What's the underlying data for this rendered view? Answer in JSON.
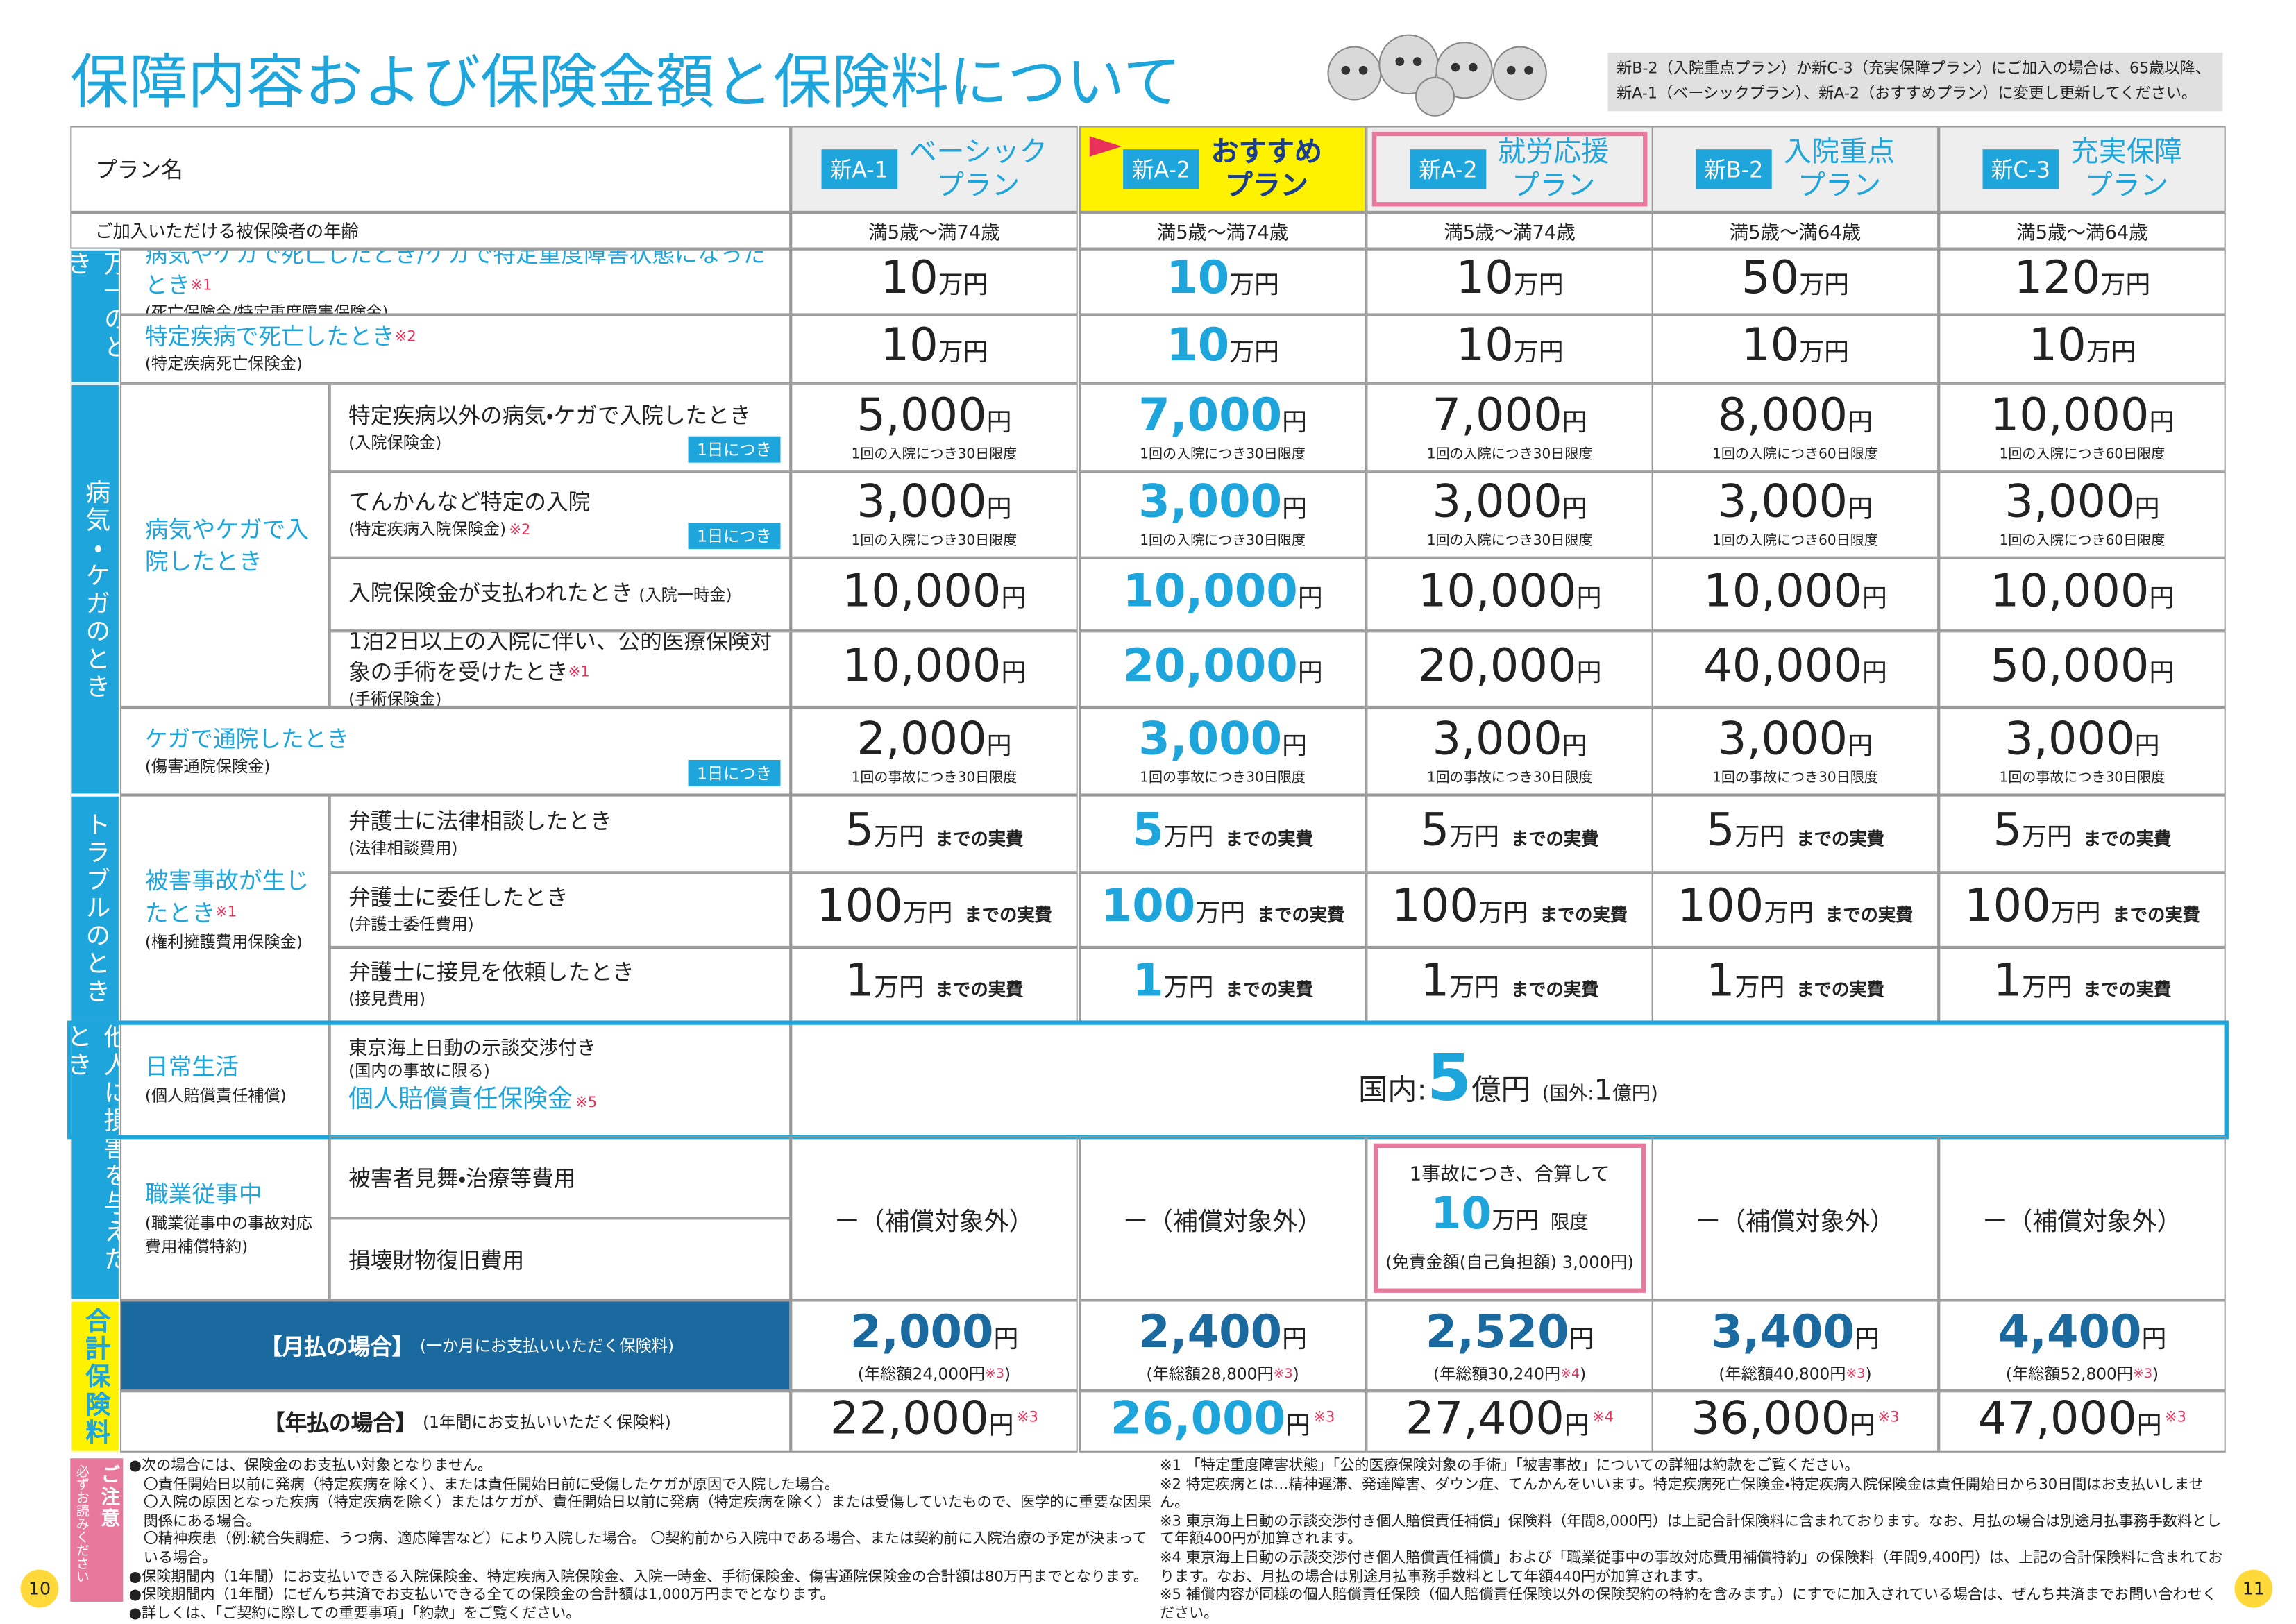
{
  "header": {
    "title": "保障内容および保険金額と保険料について",
    "note": "新B-2（入院重点プラン）か新C-3（充実保障プラン）にご加入の場合は、65歳以降、新A-1（ベーシックプラン）、新A-2（おすすめプラン）に変更し更新してください。"
  },
  "table": {
    "plan_label": "プラン名",
    "age_label": "ご加入いただける被保険者の年齢",
    "plans": [
      {
        "code": "新A-1",
        "name": [
          "ベーシック",
          "プラン"
        ],
        "age": "満5歳～満74歳"
      },
      {
        "code": "新A-2",
        "name": [
          "おすすめ",
          "プラン"
        ],
        "age": "満5歳～満74歳"
      },
      {
        "code": "新A-2",
        "name": [
          "就労応援",
          "プラン"
        ],
        "age": "満5歳～満74歳"
      },
      {
        "code": "新B-2",
        "name": [
          "入院重点",
          "プラン"
        ],
        "age": "満5歳～満64歳"
      },
      {
        "code": "新C-3",
        "name": [
          "充実保障",
          "プラン"
        ],
        "age": "満5歳～満64歳"
      }
    ],
    "sections": [
      {
        "label": "万一のとき"
      },
      {
        "label": "病気・ケガのとき"
      },
      {
        "label": "トラブルのとき"
      },
      {
        "label": "他人に損害を与えたとき"
      },
      {
        "label": "合計保険料"
      }
    ],
    "groups": [
      {
        "label": "病気やケガで入院したとき"
      },
      {
        "label": "被害事故が生じたとき",
        "mark": "※1",
        "sub": "(権利擁護費用保険金)"
      },
      {
        "label": "日常生活",
        "sub": "(個人賠償責任補償)"
      },
      {
        "label": "職業従事中",
        "sub": "(職業従事中の事故対応費用補償特約)"
      }
    ],
    "rows": [
      {
        "label": "病気やケガで死亡したとき/ケガで特定重度障害状態になったとき",
        "mark": "※1",
        "sub": "(死亡保険金/特定重度障害保険金)",
        "unit": "万円",
        "amounts": [
          "10",
          "10",
          "10",
          "50",
          "120"
        ]
      },
      {
        "label": "特定疾病で死亡したとき",
        "sub": "(特定疾病死亡保険金)",
        "mark": "※2",
        "unit": "万円",
        "amounts": [
          "10",
          "10",
          "10",
          "10",
          "10"
        ]
      },
      {
        "label": "特定疾病以外の病気・ケガで入院したとき",
        "sub": "(入院保険金)",
        "badge": "1日につき",
        "unit": "円",
        "amounts": [
          "5,000",
          "7,000",
          "7,000",
          "8,000",
          "10,000"
        ],
        "limits": [
          "1回の入院につき30日限度",
          "1回の入院につき30日限度",
          "1回の入院につき30日限度",
          "1回の入院につき60日限度",
          "1回の入院につき60日限度"
        ]
      },
      {
        "label": "てんかんなど特定の入院",
        "sub": "(特定疾病入院保険金)",
        "mark": "※2",
        "badge": "1日につき",
        "unit": "円",
        "amounts": [
          "3,000",
          "3,000",
          "3,000",
          "3,000",
          "3,000"
        ],
        "limits": [
          "1回の入院につき30日限度",
          "1回の入院につき30日限度",
          "1回の入院につき30日限度",
          "1回の入院につき60日限度",
          "1回の入院につき60日限度"
        ]
      },
      {
        "label": "入院保険金が支払われたとき",
        "sub": "(入院一時金)",
        "unit": "円",
        "amounts": [
          "10,000",
          "10,000",
          "10,000",
          "10,000",
          "10,000"
        ]
      },
      {
        "label": "1泊2日以上の入院に伴い、公的医療保険対象の手術を受けたとき",
        "mark": "※1",
        "sub": "(手術保険金)",
        "unit": "円",
        "amounts": [
          "10,000",
          "20,000",
          "20,000",
          "40,000",
          "50,000"
        ]
      },
      {
        "label": "ケガで通院したとき",
        "sub": "(傷害通院保険金)",
        "badge": "1日につき",
        "unit": "円",
        "amounts": [
          "2,000",
          "3,000",
          "3,000",
          "3,000",
          "3,000"
        ],
        "limits": [
          "1回の事故につき30日限度",
          "1回の事故につき30日限度",
          "1回の事故につき30日限度",
          "1回の事故につき30日限度",
          "1回の事故につき30日限度"
        ]
      },
      {
        "label": "弁護士に法律相談したとき",
        "sub": "(法律相談費用)",
        "unit": "万円",
        "suffix": "までの実費",
        "amounts": [
          "5",
          "5",
          "5",
          "5",
          "5"
        ]
      },
      {
        "label": "弁護士に委任したとき",
        "sub": "(弁護士委任費用)",
        "unit": "万円",
        "suffix": "までの実費",
        "amounts": [
          "100",
          "100",
          "100",
          "100",
          "100"
        ]
      },
      {
        "label": "弁護士に接見を依頼したとき",
        "sub": "(接見費用)",
        "unit": "万円",
        "suffix": "までの実費",
        "amounts": [
          "1",
          "1",
          "1",
          "1",
          "1"
        ]
      }
    ],
    "liability": {
      "title_pre": "東京海上日動の示談交渉付き",
      "title_note": "(国内の事故に限る)",
      "title": "個人賠償責任保険金",
      "mark": "※5",
      "domestic_label": "国内:",
      "domestic_amount": "5",
      "unit": "億円",
      "overseas_label": "(国外:",
      "overseas_amount": "1",
      "overseas_unit": "億円)"
    },
    "work": {
      "items": [
        "被害者見舞・治療等費用",
        "損壊財物復旧費用"
      ],
      "not_covered": "ー（補償対象外）",
      "special": {
        "line1": "1事故につき、合算して",
        "amount": "10",
        "unit": "万円",
        "limit": "限度",
        "note": "(免責金額(自己負担額) 3,000円)"
      }
    },
    "premiums": [
      {
        "label": "【月払の場合】",
        "sub": "(一か月にお支払いいただく保険料)",
        "unit": "円",
        "amounts": [
          "2,000",
          "2,400",
          "2,520",
          "3,400",
          "4,400"
        ],
        "annual": [
          "(年総額24,000円",
          "(年総額28,800円",
          "(年総額30,240円",
          "(年総額40,800円",
          "(年総額52,800円"
        ],
        "marks": [
          "※3",
          "※3",
          "※4",
          "※3",
          "※3"
        ],
        "close": ")"
      },
      {
        "label": "【年払の場合】",
        "sub": "(1年間にお支払いいただく保険料)",
        "unit": "円",
        "amounts": [
          "22,000",
          "26,000",
          "27,400",
          "36,000",
          "47,000"
        ],
        "marks": [
          "※3",
          "※3",
          "※4",
          "※3",
          "※3"
        ]
      }
    ]
  },
  "notes": {
    "caution_label": "必ずお読みください",
    "caution_title": "ご注意",
    "left": [
      "●次の場合には、保険金のお支払い対象となりません。",
      "〇責任開始日以前に発病（特定疾病を除く）、または責任開始日前に受傷したケガが原因で入院した場合。",
      "〇入院の原因となった疾病（特定疾病を除く）またはケガが、責任開始日以前に発病（特定疾病を除く）または受傷していたもので、医学的に重要な因果関係にある場合。",
      "〇精神疾患（例:統合失調症、うつ病、適応障害など）により入院した場合。 〇契約前から入院中である場合、または契約前に入院治療の予定が決まっている場合。",
      "●保険期間内（1年間）にお支払いできる入院保険金、特定疾病入院保険金、入院一時金、手術保険金、傷害通院保険金の合計額は80万円までとなります。",
      "●保険期間内（1年間）にぜんち共済でお支払いできる全ての保険金の合計額は1,000万円までとなります。",
      "●詳しくは、「ご契約に際しての重要事項」「約款」をご覧ください。"
    ],
    "right": [
      "※1 「特定重度障害状態」「公的医療保険対象の手術」「被害事故」についての詳細は約款をご覧ください。",
      "※2 特定疾病とは…精神遅滞、発達障害、ダウン症、てんかんをいいます。特定疾病死亡保険金・特定疾病入院保険金は責任開始日から30日間はお支払いしません。",
      "※3 東京海上日動の示談交渉付き個人賠償責任補償」保険料（年間8,000円）は上記合計保険料に含まれております。なお、月払の場合は別途月払事務手数料として年額400円が加算されます。",
      "※4 東京海上日動の示談交渉付き個人賠償責任補償」および「職業従事中の事故対応費用補償特約」の保険料（年間9,400円）は、上記の合計保険料に含まれております。なお、月払の場合は別途月払事務手数料として年額440円が加算されます。",
      "※5 補償内容が同様の個人賠償責任保険（個人賠償責任保険以外の保険契約の特約を含みます。）にすでに加入されている場合は、ぜんち共済までお問い合わせください。"
    ]
  },
  "page_numbers": [
    "10",
    "11"
  ]
}
